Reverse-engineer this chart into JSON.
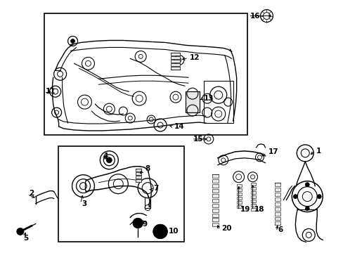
{
  "background_color": "#ffffff",
  "fig_width": 4.89,
  "fig_height": 3.6,
  "dpi": 100,
  "image_url": "target_embedded"
}
